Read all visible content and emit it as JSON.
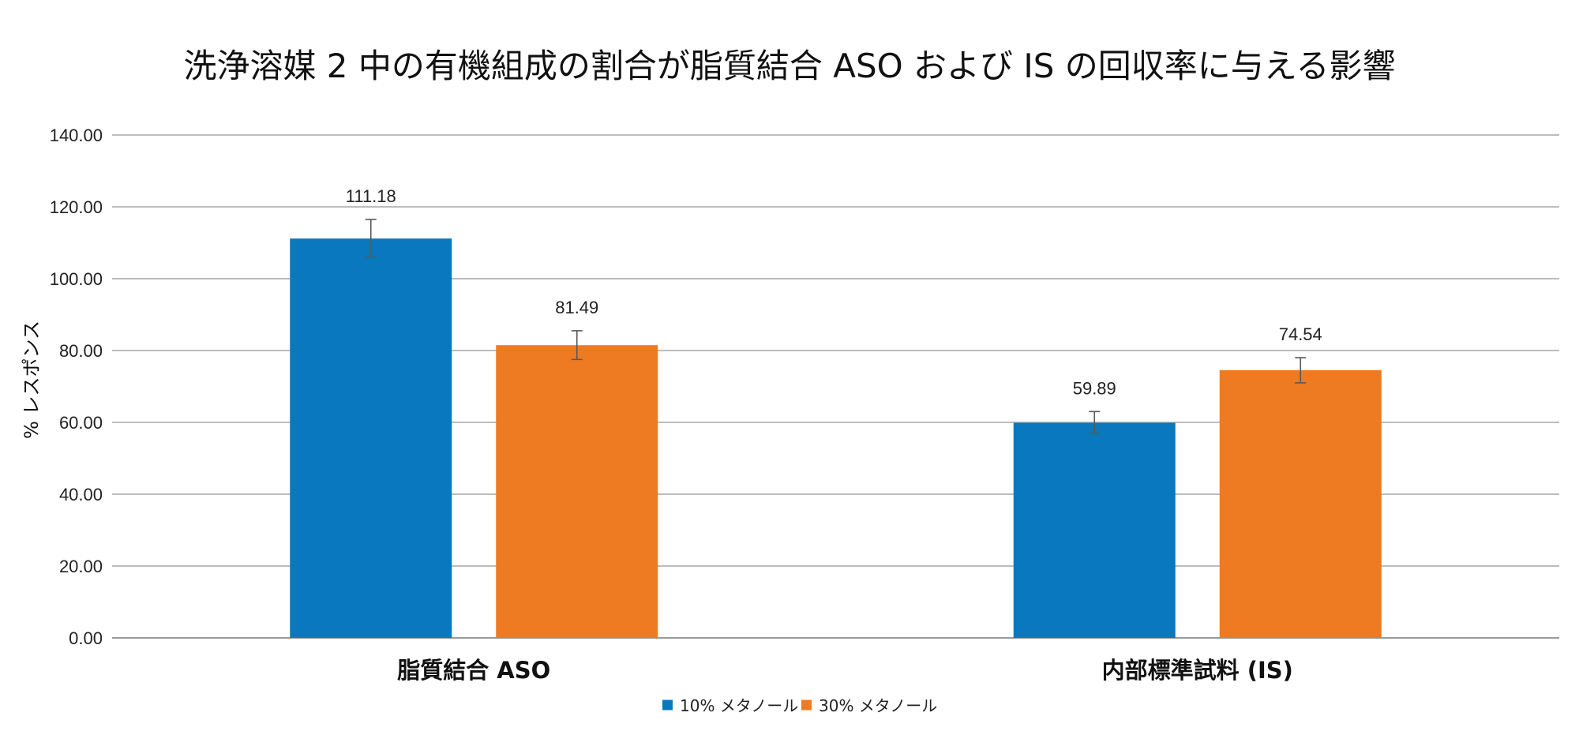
{
  "chart_data": {
    "type": "bar",
    "title": "洗浄溶媒 2 中の有機組成の割合が脂質結合 ASO および IS の回収率に与える影響",
    "ylabel": "% レスポンス",
    "xlabel": "",
    "ylim": [
      0,
      140
    ],
    "yticks": [
      0,
      20,
      40,
      60,
      80,
      100,
      120,
      140
    ],
    "ytick_labels": [
      "0.00",
      "20.00",
      "40.00",
      "60.00",
      "80.00",
      "100.00",
      "120.00",
      "140.00"
    ],
    "categories": [
      "脂質結合 ASO",
      "内部標準試料 (IS)"
    ],
    "series": [
      {
        "name": "10% メタノール",
        "color": "#0A78BE",
        "values": [
          111.18,
          59.89
        ],
        "labels": [
          "111.18",
          "59.89"
        ],
        "error_low": [
          106.0,
          57.0
        ],
        "error_high": [
          116.5,
          63.0
        ]
      },
      {
        "name": "30% メタノール",
        "color": "#EE7A22",
        "values": [
          81.49,
          74.54
        ],
        "labels": [
          "81.49",
          "74.54"
        ],
        "error_low": [
          77.5,
          71.0
        ],
        "error_high": [
          85.5,
          78.0
        ]
      }
    ],
    "grid": true,
    "legend": "bottom-center"
  }
}
